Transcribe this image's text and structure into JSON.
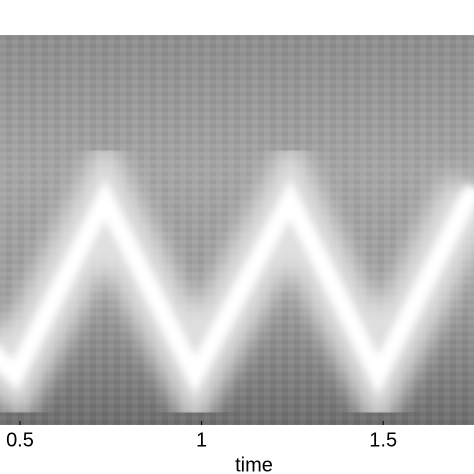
{
  "chart_data": {
    "type": "spectrogram",
    "xlabel": "time",
    "xlim": [
      0.445,
      1.75
    ],
    "xticks": [
      0.5,
      1,
      1.5
    ]
  }
}
